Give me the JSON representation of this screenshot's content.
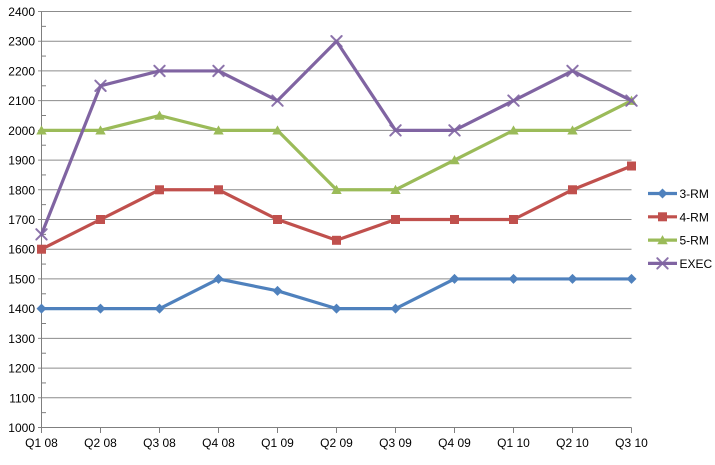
{
  "chart_data": {
    "type": "line",
    "title": "",
    "xlabel": "",
    "ylabel": "",
    "categories": [
      "Q1 08",
      "Q2 08",
      "Q3 08",
      "Q4 08",
      "Q1 09",
      "Q2 09",
      "Q3 09",
      "Q4 09",
      "Q1 10",
      "Q2 10",
      "Q3 10"
    ],
    "y_tick_labels": [
      "1000",
      "1100",
      "1200",
      "1300",
      "1400",
      "1500",
      "1600",
      "1700",
      "1800",
      "1900",
      "2000",
      "2100",
      "2200",
      "2300",
      "2400"
    ],
    "ylim": [
      1000,
      2400
    ],
    "y_major_step": 100,
    "y_minor_step": 50,
    "grid": true,
    "legend_position": "right",
    "series": [
      {
        "name": "3-RM",
        "color": "#4F81BD",
        "marker": "diamond",
        "values": [
          1400,
          1400,
          1400,
          1500,
          1460,
          1400,
          1400,
          1500,
          1500,
          1500,
          1500
        ]
      },
      {
        "name": "4-RM",
        "color": "#C0504D",
        "marker": "square",
        "values": [
          1600,
          1700,
          1800,
          1800,
          1700,
          1630,
          1700,
          1700,
          1700,
          1800,
          1880
        ]
      },
      {
        "name": "5-RM",
        "color": "#9BBB59",
        "marker": "triangle",
        "values": [
          2000,
          2000,
          2050,
          2000,
          2000,
          1800,
          1800,
          1900,
          2000,
          2000,
          2100
        ]
      },
      {
        "name": "EXEC",
        "color": "#8064A2",
        "marker": "x",
        "values": [
          1650,
          2150,
          2200,
          2200,
          2100,
          2300,
          2000,
          2000,
          2100,
          2200,
          2100
        ]
      }
    ],
    "colors": {
      "axis": "#7F7F7F",
      "gridline": "#8C8C8C",
      "text": "#000000",
      "background": "#FFFFFF"
    }
  }
}
